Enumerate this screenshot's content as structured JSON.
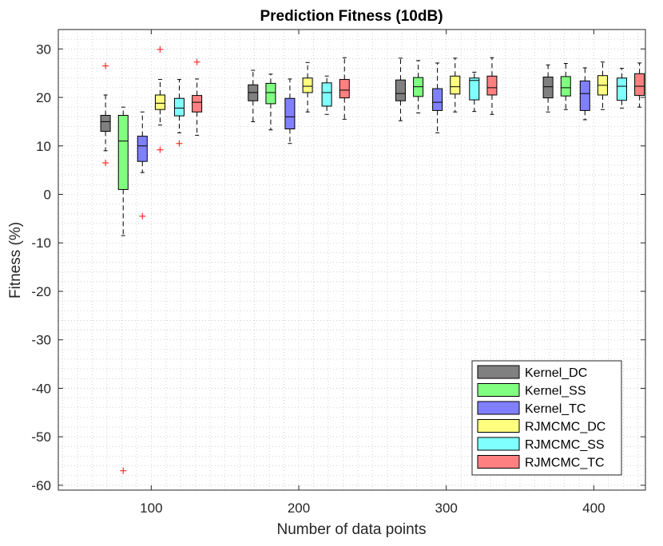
{
  "chart_data": {
    "type": "boxplot",
    "title": "Prediction Fitness (10dB)",
    "xlabel": "Number of data points",
    "ylabel": "Fitness (%)",
    "xlim": [
      37,
      435
    ],
    "ylim": [
      -61,
      34
    ],
    "xticks": [
      100,
      200,
      300,
      400
    ],
    "yticks": [
      30,
      20,
      10,
      0,
      -10,
      -20,
      -30,
      -40,
      -50,
      -60
    ],
    "grid": "dotted minor",
    "legend_position": "bottom-right",
    "series": [
      {
        "name": "Kernel_DC",
        "color": "#808080"
      },
      {
        "name": "Kernel_SS",
        "color": "#80ff80"
      },
      {
        "name": "Kernel_TC",
        "color": "#8080ff"
      },
      {
        "name": "RJMCMC_DC",
        "color": "#ffff80"
      },
      {
        "name": "RJMCMC_SS",
        "color": "#80ffff"
      },
      {
        "name": "RJMCMC_TC",
        "color": "#ff8080"
      }
    ],
    "groups": [
      {
        "x_positions": [
          69,
          81,
          94,
          106,
          119,
          131
        ],
        "boxes": [
          {
            "series": 0,
            "whisker_low": 9,
            "q1": 13,
            "median": 15,
            "q3": 16.3,
            "whisker_high": 20.5,
            "outliers": [
              26.5,
              6.5
            ]
          },
          {
            "series": 1,
            "whisker_low": -8.5,
            "q1": 1,
            "median": 11,
            "q3": 16.3,
            "whisker_high": 18,
            "outliers": [
              -57
            ]
          },
          {
            "series": 2,
            "whisker_low": 4.5,
            "q1": 6.8,
            "median": 10,
            "q3": 12,
            "whisker_high": 17,
            "outliers": [
              -4.5
            ]
          },
          {
            "series": 3,
            "whisker_low": 14.3,
            "q1": 17.5,
            "median": 18.8,
            "q3": 20.5,
            "whisker_high": 23.7,
            "outliers": [
              29.9,
              9.2
            ]
          },
          {
            "series": 4,
            "whisker_low": 12.7,
            "q1": 16.2,
            "median": 17.8,
            "q3": 19.8,
            "whisker_high": 23.7,
            "outliers": [
              10.5
            ]
          },
          {
            "series": 5,
            "whisker_low": 12.2,
            "q1": 17,
            "median": 19,
            "q3": 20.4,
            "whisker_high": 23.8,
            "outliers": [
              27.3
            ]
          }
        ]
      },
      {
        "x_positions": [
          169,
          181,
          194,
          206,
          219,
          231
        ],
        "boxes": [
          {
            "series": 0,
            "whisker_low": 15,
            "q1": 19.3,
            "median": 21,
            "q3": 22.6,
            "whisker_high": 25.6,
            "outliers": []
          },
          {
            "series": 1,
            "whisker_low": 13.3,
            "q1": 18.7,
            "median": 21,
            "q3": 22.9,
            "whisker_high": 24.8,
            "outliers": []
          },
          {
            "series": 2,
            "whisker_low": 10.5,
            "q1": 13.5,
            "median": 16,
            "q3": 19.8,
            "whisker_high": 23.8,
            "outliers": []
          },
          {
            "series": 3,
            "whisker_low": 17,
            "q1": 21,
            "median": 22.3,
            "q3": 24,
            "whisker_high": 27.2,
            "outliers": []
          },
          {
            "series": 4,
            "whisker_low": 16.5,
            "q1": 18.2,
            "median": 21,
            "q3": 23,
            "whisker_high": 24.4,
            "outliers": []
          },
          {
            "series": 5,
            "whisker_low": 15.5,
            "q1": 19.9,
            "median": 21.5,
            "q3": 23.7,
            "whisker_high": 28.2,
            "outliers": []
          }
        ]
      },
      {
        "x_positions": [
          269,
          281,
          294,
          306,
          319,
          331
        ],
        "boxes": [
          {
            "series": 0,
            "whisker_low": 15.2,
            "q1": 19.3,
            "median": 20.8,
            "q3": 23.6,
            "whisker_high": 28.1,
            "outliers": []
          },
          {
            "series": 1,
            "whisker_low": 16.8,
            "q1": 20.2,
            "median": 22.2,
            "q3": 24.1,
            "whisker_high": 27.6,
            "outliers": []
          },
          {
            "series": 2,
            "whisker_low": 12.7,
            "q1": 17.3,
            "median": 19,
            "q3": 21.8,
            "whisker_high": 27.1,
            "outliers": []
          },
          {
            "series": 3,
            "whisker_low": 17,
            "q1": 20.7,
            "median": 22.2,
            "q3": 24.4,
            "whisker_high": 28.1,
            "outliers": []
          },
          {
            "series": 4,
            "whisker_low": 17.1,
            "q1": 19.5,
            "median": 23.5,
            "q3": 24,
            "whisker_high": 25.2,
            "outliers": []
          },
          {
            "series": 5,
            "whisker_low": 16.5,
            "q1": 20.5,
            "median": 22,
            "q3": 24.4,
            "whisker_high": 28.2,
            "outliers": []
          }
        ]
      },
      {
        "x_positions": [
          369,
          381,
          394,
          406,
          419,
          431
        ],
        "boxes": [
          {
            "series": 0,
            "whisker_low": 17,
            "q1": 19.9,
            "median": 22.2,
            "q3": 24.2,
            "whisker_high": 26.7,
            "outliers": []
          },
          {
            "series": 1,
            "whisker_low": 17.5,
            "q1": 20.3,
            "median": 22,
            "q3": 24.3,
            "whisker_high": 27,
            "outliers": []
          },
          {
            "series": 2,
            "whisker_low": 15.4,
            "q1": 17.3,
            "median": 20.8,
            "q3": 23.4,
            "whisker_high": 26.1,
            "outliers": []
          },
          {
            "series": 3,
            "whisker_low": 17.5,
            "q1": 20.5,
            "median": 22.5,
            "q3": 24.5,
            "whisker_high": 27.3,
            "outliers": []
          },
          {
            "series": 4,
            "whisker_low": 17.8,
            "q1": 19.4,
            "median": 22.3,
            "q3": 24,
            "whisker_high": 26,
            "outliers": []
          },
          {
            "series": 5,
            "whisker_low": 18,
            "q1": 20.4,
            "median": 22.3,
            "q3": 24.9,
            "whisker_high": 27.1,
            "outliers": []
          }
        ]
      }
    ]
  }
}
